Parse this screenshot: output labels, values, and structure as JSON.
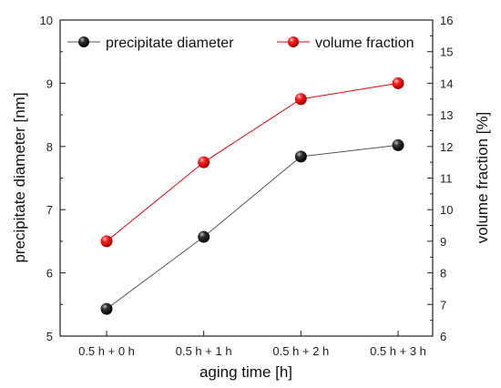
{
  "chart_data": {
    "type": "line",
    "title": "",
    "xlabel": "aging time [h]",
    "ylabel_left": "precipitate diameter [nm]",
    "ylabel_right": "volume fraction [%]",
    "categories": [
      "0.5 h + 0 h",
      "0.5 h + 1 h",
      "0.5 h + 2 h",
      "0.5 h + 3 h"
    ],
    "ylim_left": [
      5,
      10
    ],
    "yticks_left": [
      5,
      6,
      7,
      8,
      9,
      10
    ],
    "ylim_right": [
      6,
      16
    ],
    "yticks_right": [
      6,
      7,
      8,
      9,
      10,
      11,
      12,
      13,
      14,
      15,
      16
    ],
    "grid": false,
    "legend_position": "top",
    "series": [
      {
        "name": "precipitate diameter",
        "axis": "left",
        "values": [
          5.43,
          6.57,
          7.84,
          8.02
        ],
        "color": "#000000",
        "line_color": "#555555"
      },
      {
        "name": "volume fraction",
        "axis": "right",
        "values": [
          9.0,
          11.5,
          13.5,
          14.0
        ],
        "color": "#e8000b",
        "line_color": "#e8000b"
      }
    ]
  }
}
